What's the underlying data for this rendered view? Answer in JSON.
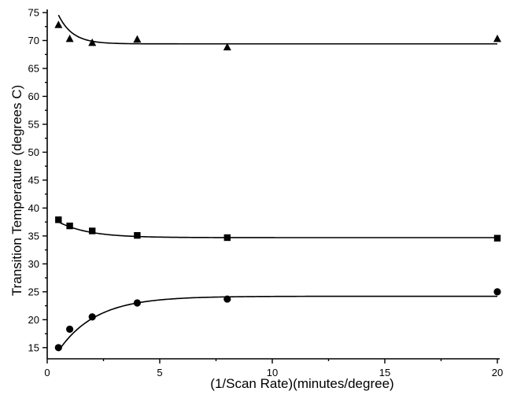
{
  "chart_data": {
    "type": "scatter",
    "title": "",
    "xlabel": "(1/Scan Rate)(minutes/degree)",
    "ylabel": "Transition Temperature (degrees C)",
    "xlim": [
      0,
      20
    ],
    "ylim": [
      13,
      75
    ],
    "x_major_ticks": [
      0,
      5,
      10,
      15,
      20
    ],
    "x_tick_labels": [
      "0",
      "5",
      "10",
      "15",
      "20"
    ],
    "y_major_ticks": [
      15,
      20,
      25,
      30,
      35,
      40,
      45,
      50,
      55,
      60,
      65,
      70,
      75
    ],
    "y_tick_labels": [
      "15",
      "20",
      "25",
      "30",
      "35",
      "40",
      "45",
      "50",
      "55",
      "60",
      "65",
      "70",
      "75"
    ],
    "grid": false,
    "legend": "none",
    "series": [
      {
        "marker": "triangle",
        "color": "#000000",
        "x": [
          0.5,
          1,
          2,
          4,
          8,
          20
        ],
        "y": [
          72.8,
          70.3,
          69.6,
          70.2,
          68.8,
          70.3
        ],
        "fit": {
          "asymptote": 69.4,
          "amplitude": 11.5,
          "rate": 1.6
        }
      },
      {
        "marker": "square",
        "color": "#000000",
        "x": [
          0.5,
          1,
          2,
          4,
          8,
          20
        ],
        "y": [
          37.9,
          36.8,
          35.9,
          35.1,
          34.7,
          34.6
        ],
        "fit": {
          "asymptote": 34.7,
          "amplitude": 4.1,
          "rate": 0.75
        }
      },
      {
        "marker": "circle",
        "color": "#000000",
        "x": [
          0.5,
          1,
          2,
          4,
          8,
          20
        ],
        "y": [
          15.0,
          18.3,
          20.5,
          23.0,
          23.7,
          25.0
        ],
        "fit": {
          "asymptote": 24.2,
          "amplitude": -13.2,
          "rate": 0.6
        }
      }
    ]
  }
}
